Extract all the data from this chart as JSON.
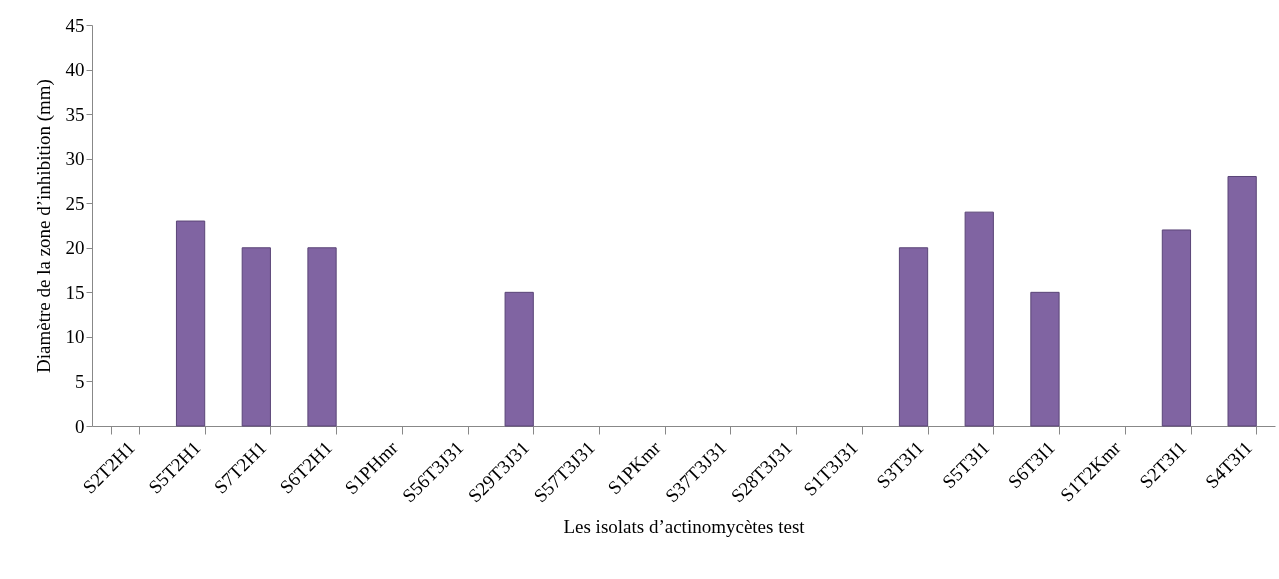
{
  "chart_data": {
    "type": "bar",
    "xlabel": "Les isolats d’actinomycètes test",
    "ylabel": "Diamètre de la zone d’inhibition (mm)",
    "categories": [
      "S2T2H1",
      "S5T2H1",
      "S7T2H1",
      "S6T2H1",
      "S1PHmr",
      "S56T3J31",
      "S29T3J31",
      "S57T3J31",
      "S1PKmr",
      "S37T3J31",
      "S28T3J31",
      "S1T3J31",
      "S3T3I1",
      "S5T3I1",
      "S6T3I1",
      "S1T2Kmr",
      "S2T3I1",
      "S4T3I1"
    ],
    "values": [
      0,
      23,
      20,
      20,
      0,
      0,
      15,
      0,
      0,
      0,
      0,
      0,
      20,
      24,
      15,
      0,
      22,
      28
    ],
    "color": "#8064a2",
    "ylim": [
      0,
      45
    ],
    "yticks": [
      0,
      5,
      10,
      15,
      20,
      25,
      30,
      35,
      40,
      45
    ],
    "grid": false,
    "legend": false
  }
}
